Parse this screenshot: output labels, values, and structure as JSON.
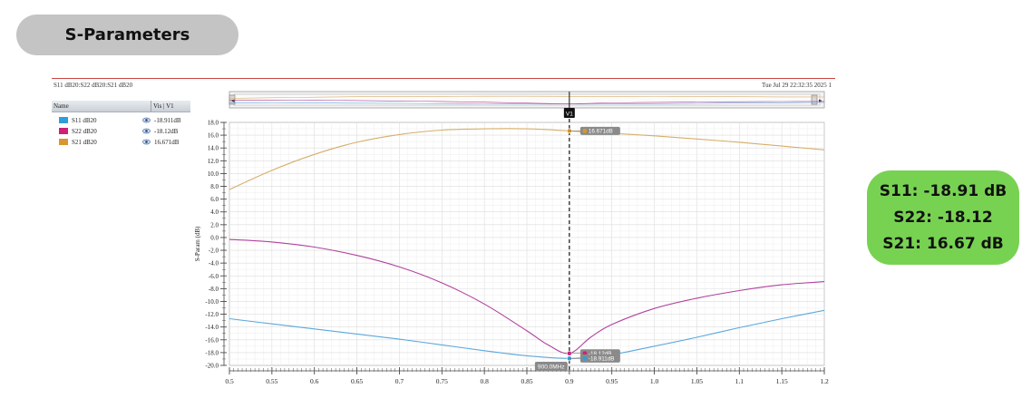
{
  "section_title": "S-Parameters",
  "results": {
    "line1": "S11: -18.91 dB",
    "line2": "S22: -18.12",
    "line3": "S21: 16.67 dB"
  },
  "viewer": {
    "header_left": "S11 dB20:S22 dB20:S21 dB20",
    "header_right": "Tue Jul 29 22:32:35 2025   1",
    "legend_header": {
      "name": "Name",
      "vis": "Vis",
      "v1": "V1"
    },
    "legend": [
      {
        "name": "S11 dB20",
        "value": "-18.911dB",
        "color": "#2e9fd8"
      },
      {
        "name": "S22 dB20",
        "value": "-18.12dB",
        "color": "#cc2277"
      },
      {
        "name": "S21 dB20",
        "value": "16.671dB",
        "color": "#d9962f"
      }
    ]
  },
  "chart_data": {
    "type": "line",
    "xlabel": "",
    "ylabel": "S-Param (dB)",
    "xlim": [
      0.5,
      1.2
    ],
    "ylim": [
      -20.0,
      18.0
    ],
    "x_ticks": [
      "0.5",
      "0.55",
      "0.6",
      "0.65",
      "0.7",
      "0.75",
      "0.8",
      "0.85",
      "0.9",
      "0.95",
      "1.0",
      "1.05",
      "1.1",
      "1.15",
      "1.2"
    ],
    "y_ticks": [
      "18.0",
      "16.0",
      "14.0",
      "12.0",
      "10.0",
      "8.0",
      "6.0",
      "4.0",
      "2.0",
      "0.0",
      "-2.0",
      "-4.0",
      "-6.0",
      "-8.0",
      "-10.0",
      "-12.0",
      "-14.0",
      "-16.0",
      "-18.0",
      "-20.0"
    ],
    "grid": true,
    "series": [
      {
        "name": "S11 dB20",
        "color": "#5aa8dc",
        "x": [
          0.5,
          0.55,
          0.6,
          0.65,
          0.7,
          0.75,
          0.8,
          0.85,
          0.9,
          0.95,
          1.0,
          1.05,
          1.1,
          1.15,
          1.2
        ],
        "y": [
          -12.7,
          -13.5,
          -14.3,
          -15.1,
          -15.9,
          -16.8,
          -17.7,
          -18.5,
          -18.91,
          -18.3,
          -17.0,
          -15.6,
          -14.1,
          -12.7,
          -11.4
        ]
      },
      {
        "name": "S22 dB20",
        "color": "#b0429c",
        "x": [
          0.5,
          0.55,
          0.6,
          0.65,
          0.7,
          0.75,
          0.8,
          0.85,
          0.875,
          0.9,
          0.925,
          0.95,
          1.0,
          1.05,
          1.1,
          1.15,
          1.2
        ],
        "y": [
          -0.3,
          -0.7,
          -1.5,
          -2.8,
          -4.6,
          -7.1,
          -10.4,
          -14.6,
          -16.8,
          -18.12,
          -15.6,
          -13.6,
          -11.1,
          -9.5,
          -8.3,
          -7.4,
          -6.9
        ]
      },
      {
        "name": "S21 dB20",
        "color": "#d6ae6a",
        "x": [
          0.5,
          0.55,
          0.6,
          0.65,
          0.7,
          0.75,
          0.8,
          0.85,
          0.9,
          0.95,
          1.0,
          1.05,
          1.1,
          1.15,
          1.2
        ],
        "y": [
          7.5,
          10.5,
          13.0,
          14.9,
          16.1,
          16.8,
          17.0,
          17.0,
          16.671,
          16.3,
          15.9,
          15.4,
          14.9,
          14.3,
          13.7
        ]
      }
    ],
    "marker": {
      "label": "V1",
      "x": 0.9,
      "x_label": "900.0MHz",
      "readouts": [
        {
          "series": "S21 dB20",
          "text": "16.671dB"
        },
        {
          "series": "S22 dB20",
          "text": "-18.12dB"
        },
        {
          "series": "S11 dB20",
          "text": "-18.911dB"
        }
      ]
    }
  }
}
